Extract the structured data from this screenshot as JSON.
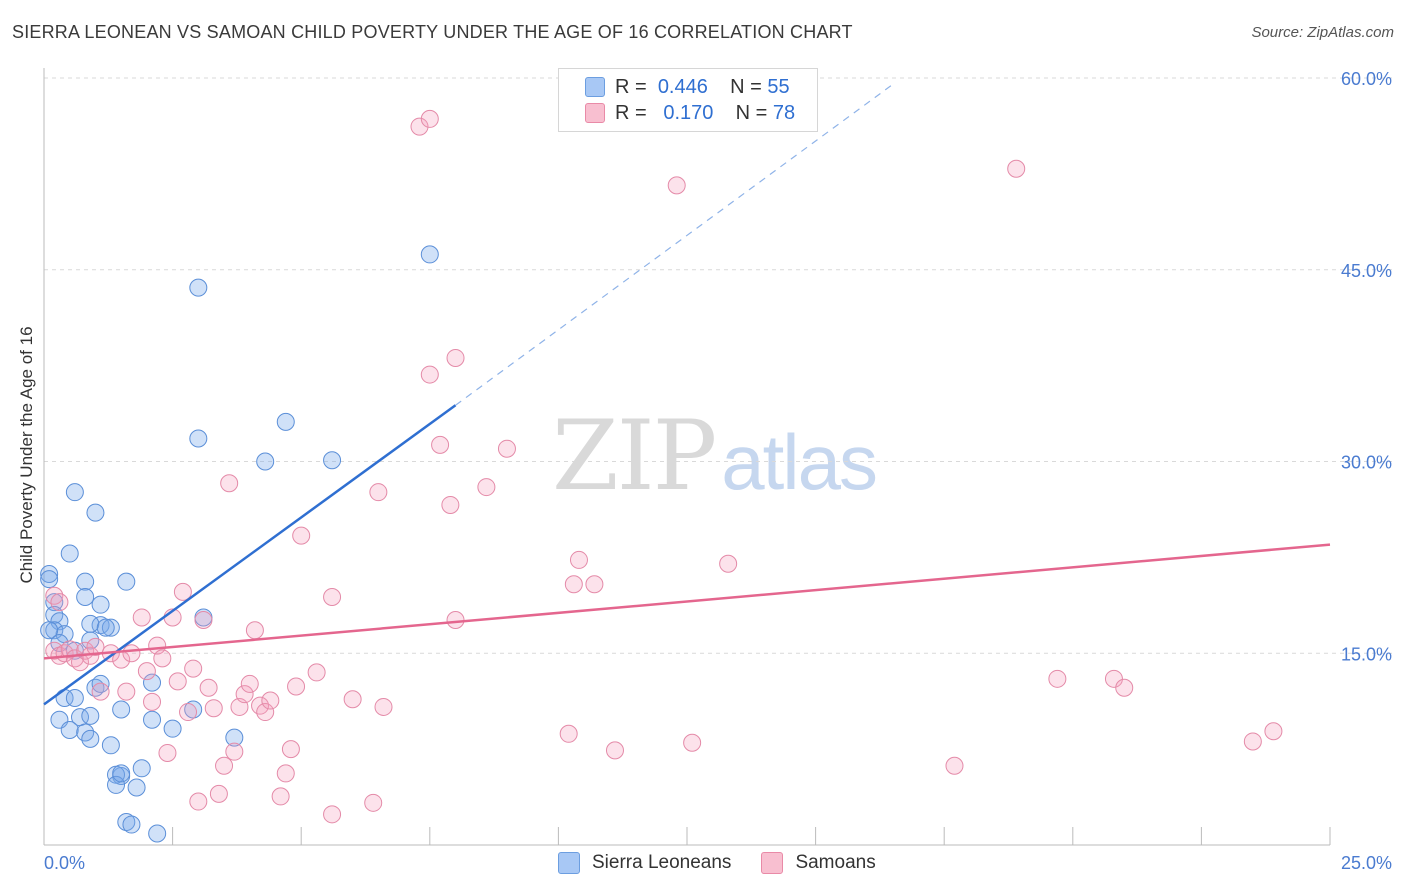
{
  "title": "SIERRA LEONEAN VS SAMOAN CHILD POVERTY UNDER THE AGE OF 16 CORRELATION CHART",
  "source": "Source: ZipAtlas.com",
  "watermark": {
    "zip": "ZIP",
    "atlas": "atlas"
  },
  "legend": {
    "r_label": "R =",
    "n_label": "N =",
    "rows": [
      {
        "r": "0.446",
        "n": "55",
        "swatch": "#a8c8f5",
        "border": "#6c9ee0"
      },
      {
        "r": "0.170",
        "n": "78",
        "swatch": "#f8bfd0",
        "border": "#e98aa7"
      }
    ]
  },
  "bottom_legend": [
    {
      "label": "Sierra Leoneans",
      "swatch": "#a8c8f5"
    },
    {
      "label": "Samoans",
      "swatch": "#f8bfd0"
    }
  ],
  "colors": {
    "blue_fill": "rgba(120,170,235,0.35)",
    "blue_stroke": "#5b8fd8",
    "blue_line": "#2f6fd1",
    "pink_fill": "rgba(245,160,190,0.30)",
    "pink_stroke": "#e48aa8",
    "pink_line": "#e4668e",
    "grid": "#d9d9d9",
    "tick_label": "#4a7bd0"
  },
  "chart_data": {
    "type": "scatter",
    "title": "SIERRA LEONEAN VS SAMOAN CHILD POVERTY UNDER THE AGE OF 16 CORRELATION CHART",
    "ylabel": "Child Poverty Under the Age of 16",
    "xlim": [
      0,
      25
    ],
    "ylim": [
      0,
      60
    ],
    "x_tick_labels": [
      "0.0%",
      "25.0%"
    ],
    "y_ticks": [
      15,
      30,
      45,
      60
    ],
    "y_tick_labels": [
      "15.0%",
      "30.0%",
      "45.0%",
      "60.0%"
    ],
    "grid": true,
    "legend_position": "top-center",
    "series": [
      {
        "name": "Sierra Leoneans",
        "R": 0.446,
        "N": 55,
        "trend": {
          "x0": 0,
          "y0": 11.0,
          "x1": 8.0,
          "y1": 34.4,
          "dashed_to_x": 16.5,
          "dashed_to_y": 59.5
        },
        "points": [
          [
            0.1,
            21.2
          ],
          [
            0.1,
            20.8
          ],
          [
            0.2,
            19.0
          ],
          [
            0.2,
            18.0
          ],
          [
            0.3,
            17.5
          ],
          [
            0.2,
            16.8
          ],
          [
            0.4,
            16.5
          ],
          [
            0.3,
            15.8
          ],
          [
            0.5,
            22.8
          ],
          [
            0.8,
            20.6
          ],
          [
            0.8,
            19.4
          ],
          [
            0.6,
            27.6
          ],
          [
            1.0,
            26.0
          ],
          [
            1.1,
            18.8
          ],
          [
            1.1,
            17.2
          ],
          [
            1.3,
            17.0
          ],
          [
            0.9,
            17.3
          ],
          [
            1.2,
            17.0
          ],
          [
            0.6,
            15.2
          ],
          [
            0.4,
            11.5
          ],
          [
            0.6,
            11.5
          ],
          [
            1.0,
            12.3
          ],
          [
            0.7,
            10.0
          ],
          [
            0.3,
            9.8
          ],
          [
            0.5,
            9.0
          ],
          [
            0.9,
            10.1
          ],
          [
            0.8,
            8.8
          ],
          [
            0.9,
            8.3
          ],
          [
            1.3,
            7.8
          ],
          [
            1.5,
            10.6
          ],
          [
            1.5,
            5.4
          ],
          [
            1.4,
            5.5
          ],
          [
            1.4,
            4.7
          ],
          [
            1.8,
            4.5
          ],
          [
            1.9,
            6.0
          ],
          [
            2.1,
            9.8
          ],
          [
            2.1,
            12.7
          ],
          [
            1.6,
            1.8
          ],
          [
            1.7,
            1.6
          ],
          [
            2.2,
            0.9
          ],
          [
            2.5,
            9.1
          ],
          [
            2.9,
            10.6
          ],
          [
            3.1,
            17.8
          ],
          [
            3.0,
            31.8
          ],
          [
            3.0,
            43.6
          ],
          [
            3.7,
            8.4
          ],
          [
            4.3,
            30.0
          ],
          [
            4.7,
            33.1
          ],
          [
            5.6,
            30.1
          ],
          [
            7.5,
            46.2
          ],
          [
            1.6,
            20.6
          ],
          [
            0.1,
            16.8
          ],
          [
            0.9,
            16.0
          ],
          [
            1.1,
            12.6
          ],
          [
            1.5,
            5.6
          ]
        ]
      },
      {
        "name": "Samoans",
        "R": 0.17,
        "N": 78,
        "trend": {
          "x0": 0,
          "y0": 14.6,
          "x1": 25,
          "y1": 23.5
        },
        "points": [
          [
            0.2,
            19.5
          ],
          [
            0.3,
            19.0
          ],
          [
            0.2,
            15.2
          ],
          [
            0.3,
            14.8
          ],
          [
            0.4,
            15.0
          ],
          [
            0.5,
            15.3
          ],
          [
            0.6,
            14.6
          ],
          [
            0.7,
            14.3
          ],
          [
            0.8,
            15.2
          ],
          [
            0.9,
            14.8
          ],
          [
            1.0,
            15.5
          ],
          [
            1.1,
            12.0
          ],
          [
            1.3,
            15.0
          ],
          [
            1.5,
            14.5
          ],
          [
            1.6,
            12.0
          ],
          [
            1.7,
            15.0
          ],
          [
            1.9,
            17.8
          ],
          [
            2.0,
            13.6
          ],
          [
            2.1,
            11.2
          ],
          [
            2.2,
            15.6
          ],
          [
            2.3,
            14.6
          ],
          [
            2.4,
            7.2
          ],
          [
            2.5,
            17.8
          ],
          [
            2.6,
            12.8
          ],
          [
            2.7,
            19.8
          ],
          [
            2.8,
            10.4
          ],
          [
            2.9,
            13.8
          ],
          [
            3.0,
            3.4
          ],
          [
            3.1,
            17.6
          ],
          [
            3.2,
            12.3
          ],
          [
            3.3,
            10.7
          ],
          [
            3.4,
            4.0
          ],
          [
            3.5,
            6.2
          ],
          [
            3.6,
            28.3
          ],
          [
            3.7,
            7.3
          ],
          [
            3.8,
            10.8
          ],
          [
            3.9,
            11.8
          ],
          [
            4.0,
            12.6
          ],
          [
            4.1,
            16.8
          ],
          [
            4.2,
            10.9
          ],
          [
            4.3,
            10.4
          ],
          [
            4.4,
            11.3
          ],
          [
            4.6,
            3.8
          ],
          [
            4.7,
            5.6
          ],
          [
            4.8,
            7.5
          ],
          [
            4.9,
            12.4
          ],
          [
            5.0,
            24.2
          ],
          [
            5.3,
            13.5
          ],
          [
            5.6,
            19.4
          ],
          [
            5.6,
            2.4
          ],
          [
            6.0,
            11.4
          ],
          [
            6.4,
            3.3
          ],
          [
            6.5,
            27.6
          ],
          [
            6.6,
            10.8
          ],
          [
            7.3,
            56.2
          ],
          [
            7.5,
            56.8
          ],
          [
            7.5,
            36.8
          ],
          [
            7.7,
            31.3
          ],
          [
            7.9,
            26.6
          ],
          [
            8.0,
            38.1
          ],
          [
            8.0,
            17.6
          ],
          [
            8.6,
            28.0
          ],
          [
            9.0,
            31.0
          ],
          [
            10.2,
            8.7
          ],
          [
            10.3,
            20.4
          ],
          [
            10.4,
            22.3
          ],
          [
            10.7,
            20.4
          ],
          [
            11.1,
            7.4
          ],
          [
            12.3,
            51.6
          ],
          [
            12.6,
            8.0
          ],
          [
            13.3,
            22.0
          ],
          [
            17.7,
            6.2
          ],
          [
            18.9,
            52.9
          ],
          [
            19.7,
            13.0
          ],
          [
            20.8,
            13.0
          ],
          [
            21.0,
            12.3
          ],
          [
            23.5,
            8.1
          ],
          [
            23.9,
            8.9
          ]
        ]
      }
    ]
  }
}
